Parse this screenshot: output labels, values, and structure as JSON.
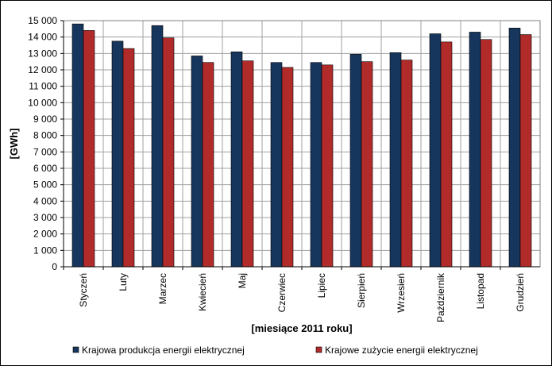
{
  "chart_data": {
    "type": "bar",
    "title": "",
    "xlabel": "[miesiące 2011  roku]",
    "ylabel": "[GWh]",
    "ylim": [
      0,
      15000
    ],
    "ytick_step": 1000,
    "ytick_labels": [
      "0",
      "1 000",
      "2 000",
      "3 000",
      "4 000",
      "5 000",
      "6 000",
      "7 000",
      "8 000",
      "9 000",
      "10 000",
      "11 000",
      "12 000",
      "13 000",
      "14 000",
      "15 000"
    ],
    "grid": true,
    "legend_position": "bottom",
    "categories": [
      "Styczeń",
      "Luty",
      "Marzec",
      "Kwiecień",
      "Maj",
      "Czerwiec",
      "Lipiec",
      "Sierpień",
      "Wrzesień",
      "Październik",
      "Listopad",
      "Grudzień"
    ],
    "series": [
      {
        "name": "Krajowa produkcja energii elektrycznej",
        "color": "#17365D",
        "values": [
          14800,
          13750,
          14700,
          12850,
          13100,
          12450,
          12450,
          12950,
          13050,
          14200,
          14300,
          14550
        ]
      },
      {
        "name": "Krajowe zużycie energii elektrycznej",
        "color": "#B22B2B",
        "values": [
          14400,
          13300,
          13950,
          12450,
          12550,
          12150,
          12300,
          12500,
          12600,
          13700,
          13850,
          14150
        ]
      }
    ]
  }
}
